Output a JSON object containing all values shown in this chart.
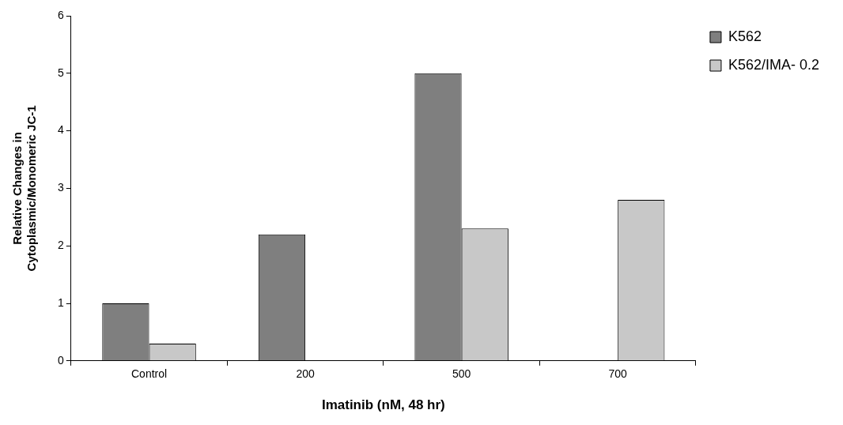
{
  "chart_data": {
    "type": "bar",
    "xlabel": "Imatinib (nM, 48 hr)",
    "ylabel": "Relative Changes in\nCytoplasmic/Monomeric JC-1",
    "categories": [
      "Control",
      "200",
      "500",
      "700"
    ],
    "series": [
      {
        "name": "K562",
        "color": "#7f7f7f",
        "values": [
          1,
          2.2,
          5,
          null
        ]
      },
      {
        "name": "K562/IMA- 0.2",
        "color": "#c8c8c8",
        "values": [
          0.3,
          null,
          2.3,
          2.8
        ]
      }
    ],
    "ylim": [
      0,
      6
    ],
    "yticks": [
      0,
      1,
      2,
      3,
      4,
      5,
      6
    ],
    "grid": false,
    "legend": "top right"
  }
}
